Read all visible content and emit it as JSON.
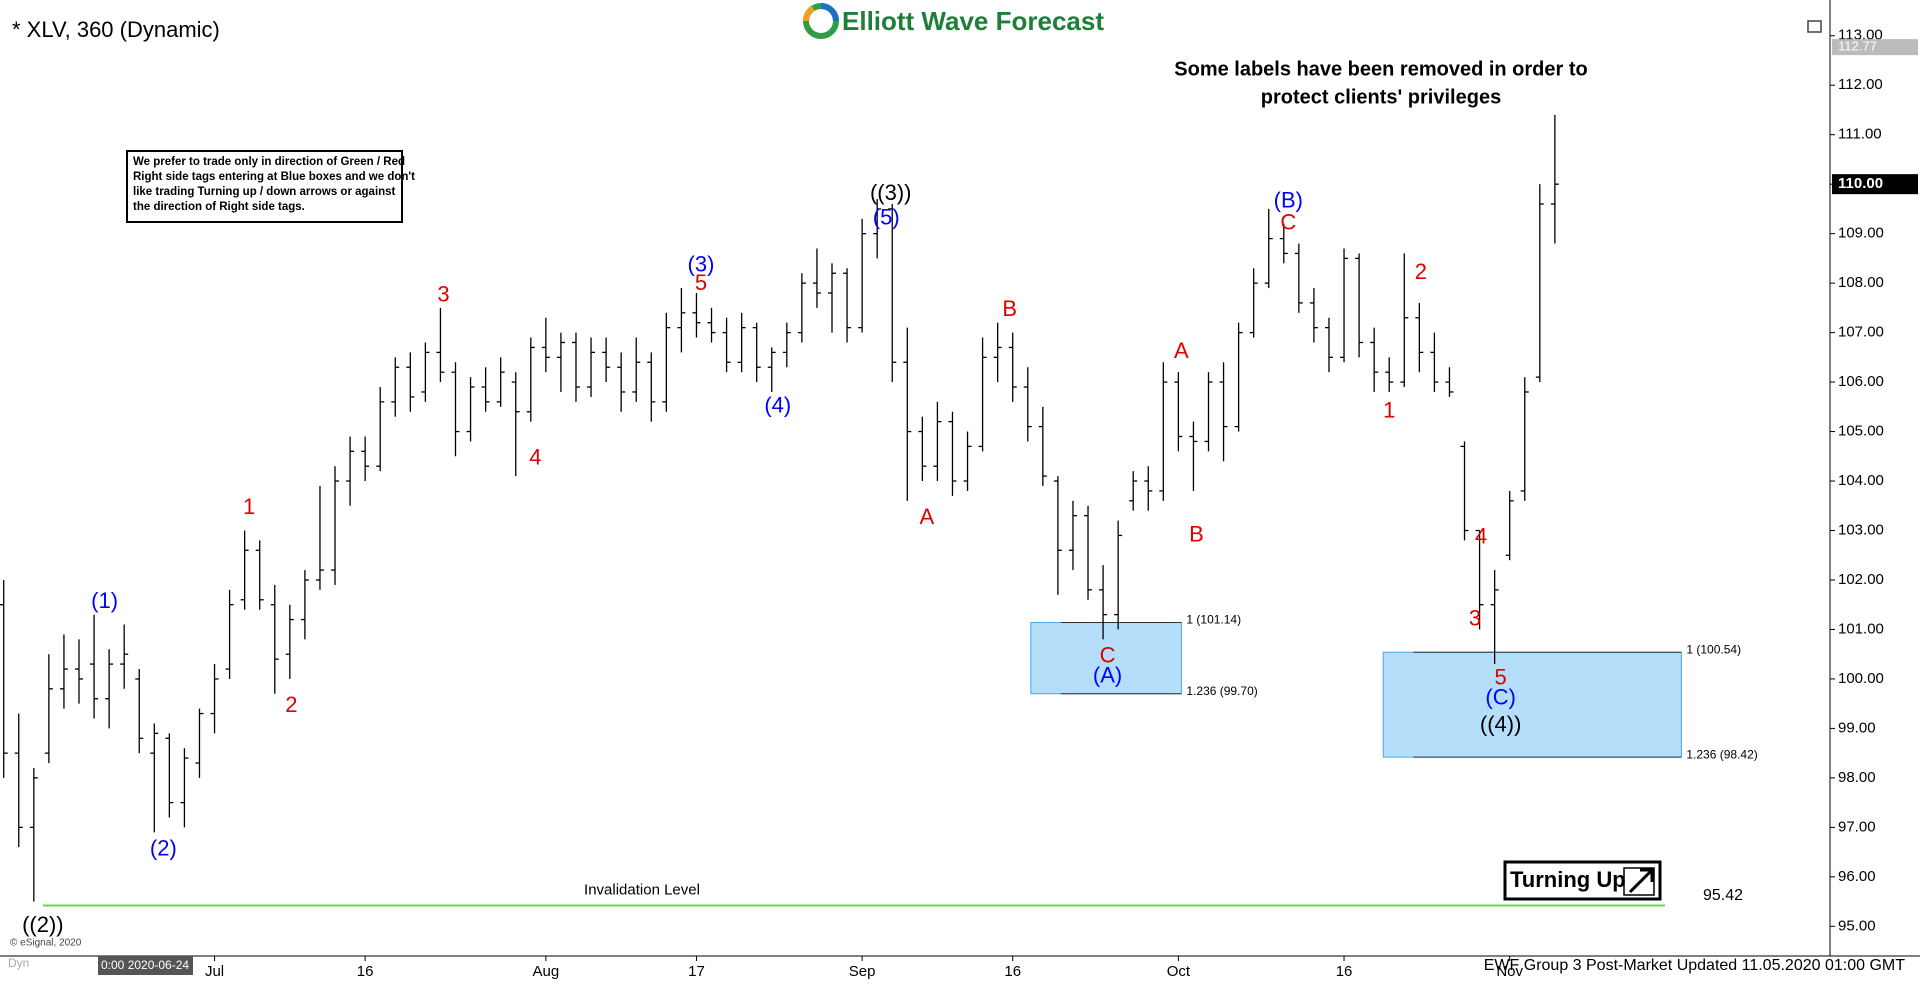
{
  "chart_data": {
    "type": "ohlc",
    "title": "* XLV, 360 (Dynamic)",
    "color": "#000000",
    "categories": [
      "2020-06-11",
      "2020-06-12",
      "2020-06-15",
      "2020-06-16",
      "2020-06-17",
      "2020-06-18",
      "2020-06-19",
      "2020-06-22",
      "2020-06-23",
      "2020-06-24",
      "2020-06-25",
      "2020-06-26",
      "2020-06-29",
      "2020-06-30",
      "2020-07-01",
      "2020-07-02",
      "2020-07-06",
      "2020-07-07",
      "2020-07-08",
      "2020-07-09",
      "2020-07-10",
      "2020-07-13",
      "2020-07-14",
      "2020-07-15",
      "2020-07-16",
      "2020-07-17",
      "2020-07-20",
      "2020-07-21",
      "2020-07-22",
      "2020-07-23",
      "2020-07-24",
      "2020-07-27",
      "2020-07-28",
      "2020-07-29",
      "2020-07-30",
      "2020-07-31",
      "2020-08-03",
      "2020-08-04",
      "2020-08-05",
      "2020-08-06",
      "2020-08-07",
      "2020-08-10",
      "2020-08-11",
      "2020-08-12",
      "2020-08-13",
      "2020-08-14",
      "2020-08-17",
      "2020-08-18",
      "2020-08-19",
      "2020-08-20",
      "2020-08-21",
      "2020-08-24",
      "2020-08-25",
      "2020-08-26",
      "2020-08-27",
      "2020-08-28",
      "2020-08-31",
      "2020-09-01",
      "2020-09-02",
      "2020-09-03",
      "2020-09-04",
      "2020-09-08",
      "2020-09-09",
      "2020-09-10",
      "2020-09-11",
      "2020-09-14",
      "2020-09-15",
      "2020-09-16",
      "2020-09-17",
      "2020-09-18",
      "2020-09-21",
      "2020-09-22",
      "2020-09-23",
      "2020-09-24",
      "2020-09-25",
      "2020-09-28",
      "2020-09-29",
      "2020-09-30",
      "2020-10-01",
      "2020-10-02",
      "2020-10-05",
      "2020-10-06",
      "2020-10-07",
      "2020-10-08",
      "2020-10-09",
      "2020-10-12",
      "2020-10-13",
      "2020-10-14",
      "2020-10-15",
      "2020-10-16",
      "2020-10-19",
      "2020-10-20",
      "2020-10-21",
      "2020-10-22",
      "2020-10-23",
      "2020-10-26",
      "2020-10-27",
      "2020-10-28",
      "2020-10-29",
      "2020-10-30",
      "2020-11-02",
      "2020-11-03",
      "2020-11-04",
      "2020-11-05"
    ],
    "open": [
      101.5,
      98.5,
      97.0,
      98.5,
      99.8,
      100.2,
      100.3,
      99.6,
      100.3,
      100.0,
      98.5,
      98.8,
      97.5,
      98.3,
      99.3,
      100.2,
      101.6,
      102.6,
      101.5,
      100.5,
      101.2,
      102.0,
      102.2,
      104.0,
      104.6,
      104.3,
      105.6,
      106.3,
      105.8,
      106.6,
      106.2,
      105.0,
      105.9,
      105.6,
      106.0,
      105.4,
      106.7,
      106.5,
      106.8,
      105.9,
      106.6,
      106.3,
      105.8,
      106.4,
      105.6,
      107.1,
      107.4,
      107.2,
      107.0,
      106.4,
      107.1,
      106.3,
      106.6,
      107.0,
      108.0,
      107.8,
      108.2,
      107.1,
      109.0,
      109.5,
      106.4,
      105.0,
      104.3,
      105.2,
      104.0,
      104.7,
      106.5,
      106.7,
      105.9,
      105.1,
      104.0,
      102.6,
      103.3,
      101.8,
      101.3,
      103.6,
      104.0,
      103.8,
      106.0,
      104.9,
      104.8,
      106.0,
      105.1,
      107.0,
      108.0,
      108.9,
      108.6,
      107.6,
      107.1,
      106.5,
      108.5,
      106.8,
      106.2,
      106.0,
      107.3,
      106.6,
      106.0,
      104.7,
      103.0,
      101.5,
      102.5,
      103.8,
      106.1,
      109.6
    ],
    "high": [
      102.0,
      99.3,
      98.2,
      100.5,
      100.9,
      100.8,
      101.3,
      100.6,
      101.1,
      100.2,
      99.1,
      98.9,
      98.6,
      99.4,
      100.3,
      101.8,
      103.0,
      102.8,
      101.9,
      101.5,
      102.2,
      103.9,
      104.3,
      104.9,
      104.9,
      105.9,
      106.5,
      106.6,
      106.8,
      107.5,
      106.4,
      106.1,
      106.3,
      106.5,
      106.2,
      106.9,
      107.3,
      107.0,
      107.0,
      106.9,
      106.9,
      106.6,
      106.9,
      106.6,
      107.4,
      107.9,
      107.8,
      107.5,
      107.3,
      107.4,
      107.2,
      106.7,
      107.2,
      108.2,
      108.7,
      108.4,
      108.3,
      109.3,
      109.7,
      109.6,
      107.1,
      105.3,
      105.6,
      105.4,
      105.0,
      106.9,
      107.2,
      107.0,
      106.3,
      105.5,
      104.1,
      103.6,
      103.5,
      102.3,
      103.2,
      104.2,
      104.3,
      106.4,
      106.2,
      105.2,
      106.2,
      106.4,
      107.2,
      108.3,
      109.5,
      109.2,
      108.8,
      107.9,
      107.3,
      108.7,
      108.6,
      107.1,
      106.5,
      108.6,
      107.6,
      107.0,
      106.3,
      104.8,
      103.0,
      102.2,
      103.8,
      106.1,
      110.0,
      111.4
    ],
    "low": [
      98.0,
      96.6,
      95.5,
      98.3,
      99.4,
      99.5,
      99.2,
      99.0,
      99.8,
      98.5,
      96.9,
      97.2,
      97.0,
      98.0,
      98.9,
      100.0,
      101.4,
      101.4,
      99.7,
      100.0,
      100.8,
      101.8,
      101.9,
      103.5,
      104.0,
      104.2,
      105.3,
      105.4,
      105.6,
      106.0,
      104.5,
      104.8,
      105.4,
      105.5,
      104.1,
      105.2,
      106.2,
      105.8,
      105.6,
      105.7,
      106.0,
      105.4,
      105.6,
      105.2,
      105.4,
      106.6,
      106.9,
      106.8,
      106.2,
      106.2,
      106.0,
      105.8,
      106.3,
      106.8,
      107.5,
      107.0,
      106.8,
      107.0,
      108.5,
      106.0,
      103.6,
      104.0,
      104.0,
      103.7,
      103.8,
      104.6,
      106.0,
      105.6,
      104.8,
      103.9,
      101.7,
      102.2,
      101.6,
      100.8,
      101.0,
      103.4,
      103.4,
      103.6,
      104.6,
      103.8,
      104.6,
      104.4,
      105.0,
      106.9,
      107.9,
      108.4,
      107.4,
      106.8,
      106.2,
      106.4,
      106.5,
      105.8,
      105.8,
      105.9,
      106.2,
      105.8,
      105.7,
      102.8,
      101.0,
      100.3,
      102.4,
      103.6,
      106.0,
      108.8
    ],
    "close": [
      98.5,
      97.0,
      98.0,
      99.8,
      100.2,
      100.0,
      99.6,
      100.3,
      100.5,
      98.8,
      98.9,
      97.5,
      98.4,
      99.3,
      100.0,
      101.5,
      102.6,
      101.6,
      100.4,
      101.2,
      102.0,
      102.2,
      104.0,
      104.6,
      104.3,
      105.6,
      106.3,
      105.7,
      106.6,
      106.2,
      105.0,
      105.9,
      105.6,
      106.2,
      105.4,
      106.7,
      106.5,
      106.8,
      105.9,
      106.6,
      106.3,
      105.8,
      106.4,
      105.6,
      107.1,
      107.4,
      107.2,
      107.0,
      106.4,
      107.1,
      106.3,
      106.6,
      107.0,
      108.0,
      107.8,
      108.2,
      107.1,
      109.0,
      109.5,
      106.4,
      105.0,
      104.3,
      105.2,
      104.0,
      104.7,
      106.5,
      106.7,
      105.9,
      105.1,
      104.1,
      102.6,
      103.3,
      101.8,
      101.3,
      102.9,
      104.0,
      103.8,
      106.0,
      104.9,
      104.8,
      106.0,
      105.1,
      107.0,
      108.0,
      108.9,
      108.6,
      107.6,
      107.1,
      106.5,
      108.5,
      106.8,
      106.2,
      106.0,
      107.3,
      106.6,
      106.0,
      105.8,
      103.0,
      101.5,
      101.8,
      103.6,
      105.8,
      109.6,
      110.0
    ],
    "ylim": [
      94.4,
      113.5
    ],
    "yticks": [
      {
        "value": 95,
        "label": "95.00"
      },
      {
        "value": 96,
        "label": "96.00"
      },
      {
        "value": 97,
        "label": "97.00"
      },
      {
        "value": 98,
        "label": "98.00"
      },
      {
        "value": 99,
        "label": "99.00"
      },
      {
        "value": 100,
        "label": "100.00"
      },
      {
        "value": 101,
        "label": "101.00"
      },
      {
        "value": 102,
        "label": "102.00"
      },
      {
        "value": 103,
        "label": "103.00"
      },
      {
        "value": 104,
        "label": "104.00"
      },
      {
        "value": 105,
        "label": "105.00"
      },
      {
        "value": 106,
        "label": "106.00"
      },
      {
        "value": 107,
        "label": "107.00"
      },
      {
        "value": 108,
        "label": "108.00"
      },
      {
        "value": 109,
        "label": "109.00"
      },
      {
        "value": 110,
        "label": "110.00"
      },
      {
        "value": 111,
        "label": "111.00"
      },
      {
        "value": 112,
        "label": "112.00"
      },
      {
        "value": 113,
        "label": "113.00"
      }
    ],
    "xticks": [
      {
        "value": "2020-07-01",
        "label": "Jul"
      },
      {
        "value": "2020-07-16",
        "label": "16"
      },
      {
        "value": "2020-08-03",
        "label": "Aug"
      },
      {
        "value": "2020-08-17",
        "label": "17"
      },
      {
        "value": "2020-09-01",
        "label": "Sep"
      },
      {
        "value": "2020-09-16",
        "label": "16"
      },
      {
        "value": "2020-10-01",
        "label": "Oct"
      },
      {
        "value": "2020-10-16",
        "label": "16"
      },
      {
        "value": "2020-11-02",
        "label": "Nov"
      }
    ],
    "last_price": {
      "value": 110,
      "label": "110.00"
    },
    "axis_high": 112.77,
    "annotations": [
      {
        "text": "((2))",
        "color": "#000000"
      },
      {
        "text": "(1)",
        "color": "#0000ff"
      },
      {
        "text": "(2)",
        "color": "#0000ff"
      },
      {
        "text": "1",
        "color": "#e00000"
      },
      {
        "text": "2",
        "color": "#e00000"
      },
      {
        "text": "3",
        "color": "#e00000"
      },
      {
        "text": "4",
        "color": "#e00000"
      },
      {
        "text": "(3)",
        "color": "#0000ff"
      },
      {
        "text": "5",
        "color": "#e00000"
      },
      {
        "text": "(4)",
        "color": "#0000ff"
      },
      {
        "text": "((3))",
        "color": "#000000"
      },
      {
        "text": "(5)",
        "color": "#0000ff"
      },
      {
        "text": "A",
        "color": "#e00000"
      },
      {
        "text": "B",
        "color": "#e00000"
      },
      {
        "text": "C",
        "color": "#e00000"
      },
      {
        "text": "(A)",
        "color": "#0000ff"
      },
      {
        "text": "A",
        "color": "#e00000"
      },
      {
        "text": "B",
        "color": "#e00000"
      },
      {
        "text": "(B)",
        "color": "#0000ff"
      },
      {
        "text": "C",
        "color": "#e00000"
      },
      {
        "text": "1",
        "color": "#e00000"
      },
      {
        "text": "2",
        "color": "#e00000"
      },
      {
        "text": "4",
        "color": "#e00000"
      },
      {
        "text": "3",
        "color": "#e00000"
      },
      {
        "text": "5",
        "color": "#e00000"
      },
      {
        "text": "(C)",
        "color": "#0000ff"
      },
      {
        "text": "((4))",
        "color": "#000000"
      }
    ],
    "fib_zones": [
      {
        "color": "#b5defa",
        "levels": [
          {
            "value": 101.14,
            "label": "1 (101.14)"
          },
          {
            "value": 99.7,
            "label": "1.236 (99.70)"
          }
        ]
      },
      {
        "color": "#b5defa",
        "levels": [
          {
            "value": 100.54,
            "label": "1 (100.54)"
          },
          {
            "value": 98.42,
            "label": "1.236 (98.42)"
          }
        ]
      }
    ],
    "invalidation": {
      "label": "Invalidation Level",
      "value": 95.42,
      "color": "#66dd44"
    },
    "note": [
      "Some labels have been removed in order to",
      "protect clients' privileges"
    ],
    "info_box": [
      "We prefer to trade only in direction of Green / Red",
      "Right side tags entering at Blue boxes and we don't",
      "like trading Turning up / down arrows or against",
      "the direction of Right side tags."
    ],
    "cursor_label": "0:00 2020-06-24"
  },
  "header": {
    "logo": "Elliott Wave Forecast"
  },
  "badge": "Turning Up",
  "footer": {
    "updated": "EWF Group 3 Post-Market Updated 11.05.2020 01:00 GMT",
    "copyright": "© eSignal, 2020",
    "mode": "Dyn"
  }
}
